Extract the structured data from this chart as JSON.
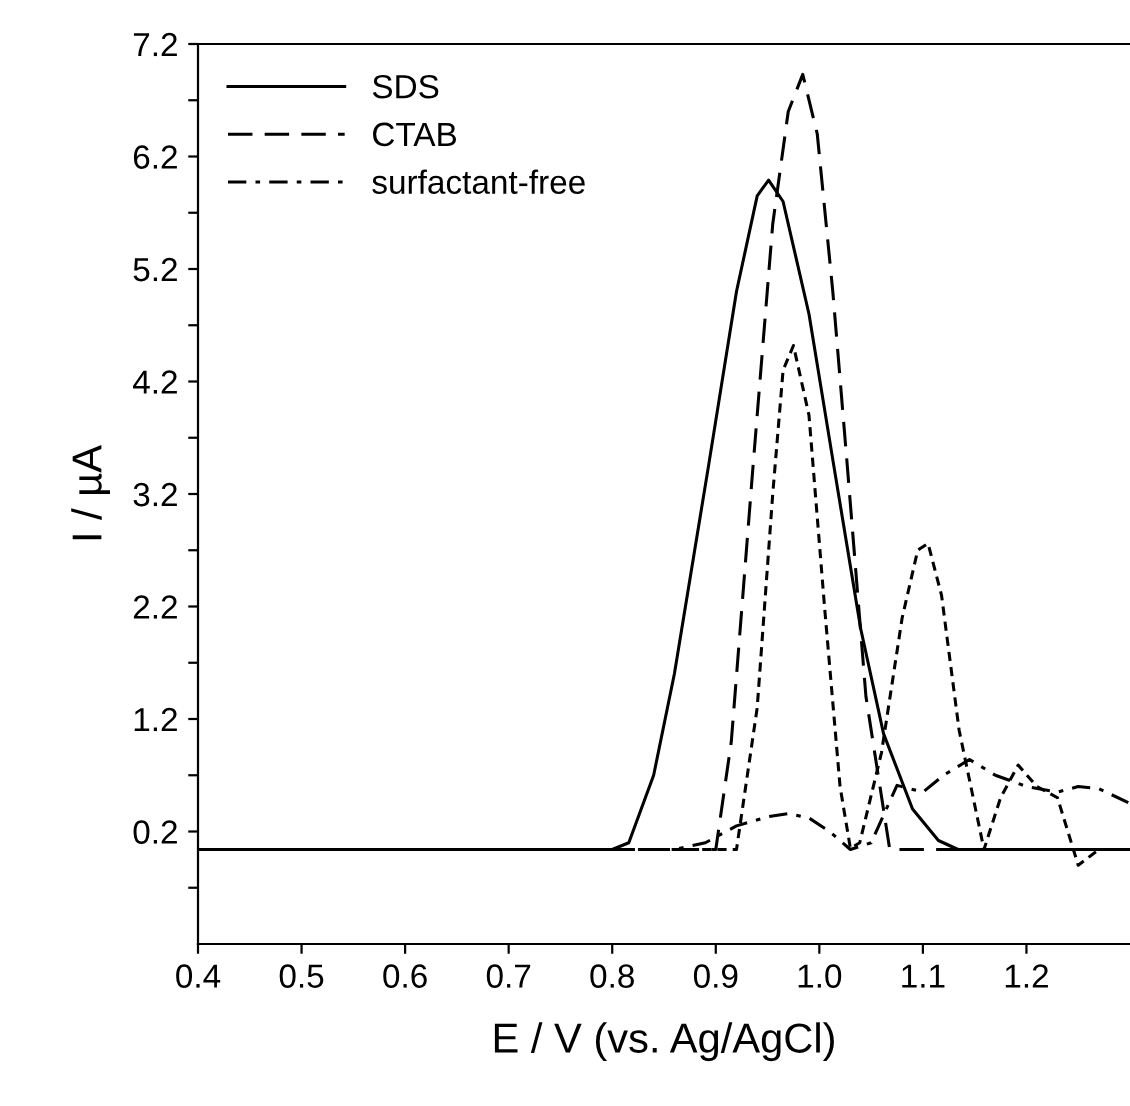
{
  "chart_data": {
    "type": "line",
    "xlabel": "E / V (vs. Ag/AgCl)",
    "ylabel": "I / µA",
    "xlim": [
      0.4,
      1.3
    ],
    "xticks": [
      {
        "value": 0.4,
        "label": "0.4"
      },
      {
        "value": 0.5,
        "label": "0.5"
      },
      {
        "value": 0.6,
        "label": "0.6"
      },
      {
        "value": 0.7,
        "label": "0.7"
      },
      {
        "value": 0.8,
        "label": "0.8"
      },
      {
        "value": 0.9,
        "label": "0.9"
      },
      {
        "value": 1.0,
        "label": "1.0"
      },
      {
        "value": 1.1,
        "label": "1.1"
      },
      {
        "value": 1.2,
        "label": "1.2"
      }
    ],
    "ylim": [
      -0.8,
      7.2
    ],
    "yticks": [
      {
        "value": -0.3,
        "label": null
      },
      0.2,
      {
        "value": 0.7,
        "label": null
      },
      1.2,
      {
        "value": 1.7,
        "label": null
      },
      2.2,
      {
        "value": 2.7,
        "label": null
      },
      3.2,
      {
        "value": 3.7,
        "label": null
      },
      4.2,
      {
        "value": 4.7,
        "label": null
      },
      5.2,
      {
        "value": 5.7,
        "label": null
      },
      6.2,
      {
        "value": 6.7,
        "label": null
      },
      7.2
    ],
    "grid": false,
    "legend": "top left",
    "marker": "none",
    "series": [
      {
        "name": "SDS",
        "color": "#000000",
        "line_style": "solid",
        "x": [
          0.4,
          0.8,
          0.816,
          0.84,
          0.86,
          0.893,
          0.92,
          0.94,
          0.951,
          0.965,
          0.99,
          1.014,
          1.04,
          1.062,
          1.09,
          1.115,
          1.134,
          1.3
        ],
        "values": [
          0.04,
          0.04,
          0.1,
          0.7,
          1.6,
          3.45,
          5.0,
          5.85,
          5.99,
          5.8,
          4.8,
          3.45,
          2.0,
          1.07,
          0.4,
          0.12,
          0.04,
          0.04
        ]
      },
      {
        "name": "CTAB",
        "color": "#000000",
        "line_style": "dashed",
        "x": [
          0.4,
          0.9,
          0.915,
          0.936,
          0.955,
          0.97,
          0.984,
          0.998,
          1.013,
          1.027,
          1.045,
          1.068,
          1.3
        ],
        "values": [
          0.04,
          0.04,
          1.0,
          3.45,
          5.6,
          6.6,
          6.93,
          6.4,
          5.0,
          3.45,
          1.4,
          0.04,
          0.04
        ]
      },
      {
        "color": "#000000",
        "line_style": "dotted",
        "x": [
          0.4,
          0.92,
          0.94,
          0.955,
          0.965,
          0.975,
          0.99,
          1.005,
          1.02,
          1.03,
          1.039,
          1.06,
          1.08,
          1.095,
          1.105,
          1.118,
          1.135,
          1.159,
          1.175,
          1.192,
          1.21,
          1.23,
          1.25,
          1.27,
          1.3
        ],
        "values": [
          0.04,
          0.04,
          1.3,
          3.2,
          4.3,
          4.52,
          3.9,
          2.2,
          0.6,
          0.05,
          0.1,
          0.9,
          2.1,
          2.7,
          2.76,
          2.3,
          1.1,
          0.04,
          0.5,
          0.79,
          0.6,
          0.5,
          -0.1,
          0.04,
          0.04
        ]
      },
      {
        "name": "surfactant-free",
        "color": "#000000",
        "line_style": "dashdot",
        "x": [
          0.4,
          0.86,
          0.89,
          0.92,
          0.95,
          0.97,
          0.99,
          1.01,
          1.03,
          1.05,
          1.075,
          1.1,
          1.12,
          1.145,
          1.17,
          1.2,
          1.23,
          1.25,
          1.27,
          1.3
        ],
        "values": [
          0.04,
          0.04,
          0.1,
          0.25,
          0.33,
          0.36,
          0.32,
          0.2,
          0.04,
          0.1,
          0.61,
          0.55,
          0.7,
          0.84,
          0.7,
          0.6,
          0.55,
          0.6,
          0.58,
          0.45
        ]
      }
    ]
  }
}
